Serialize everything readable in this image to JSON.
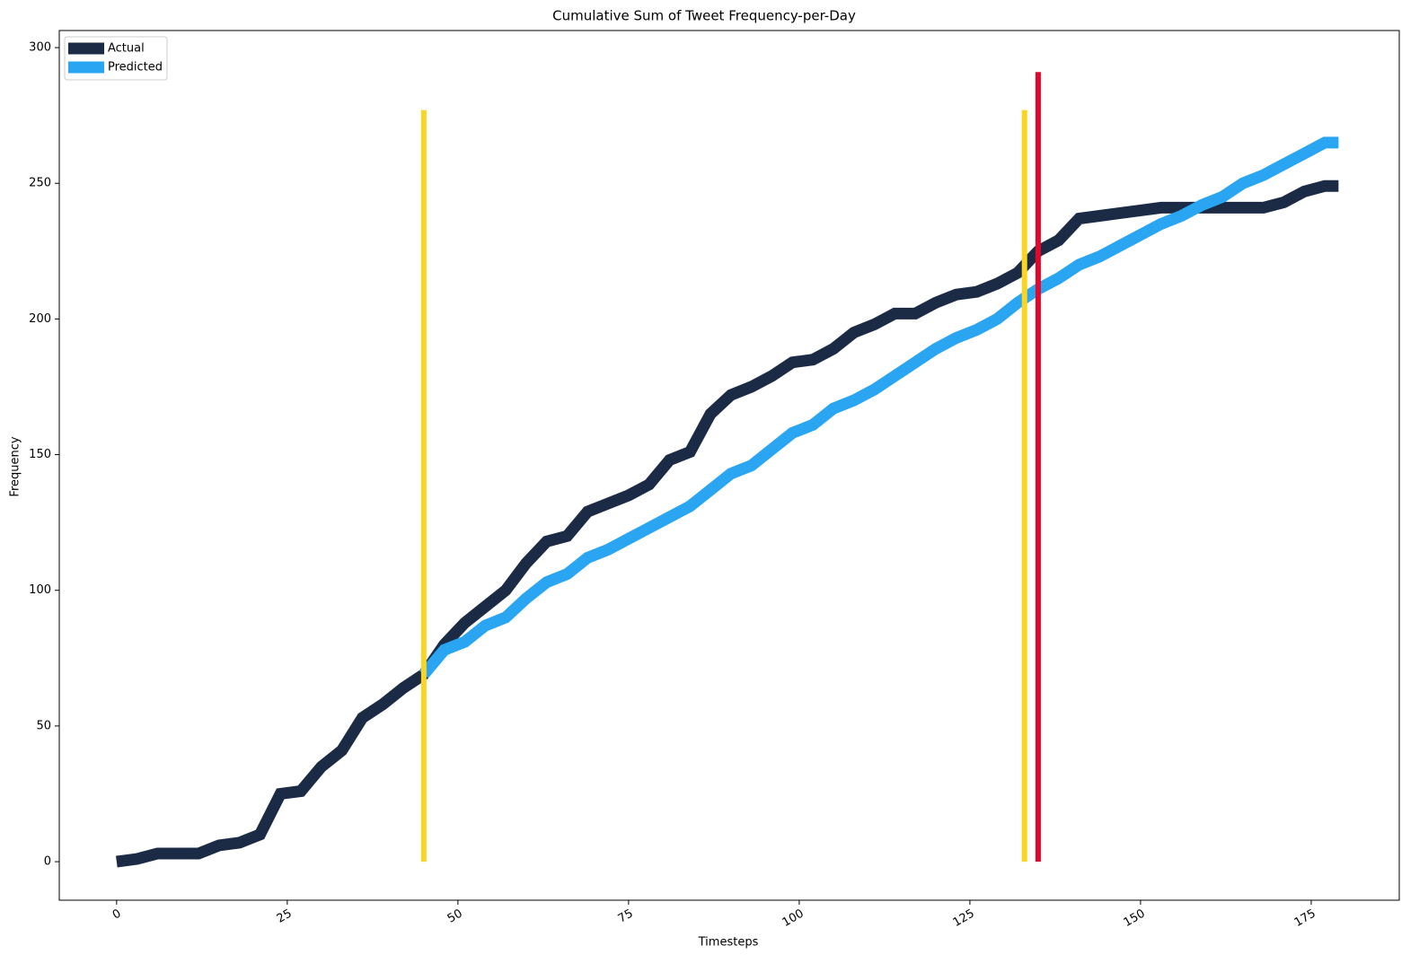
{
  "chart_data": {
    "type": "line",
    "title": "Cumulative Sum of Tweet Frequency-per-Day",
    "xlabel": "Timesteps",
    "ylabel": "Frequency",
    "x": [
      0,
      3,
      6,
      9,
      12,
      15,
      18,
      21,
      24,
      27,
      30,
      33,
      36,
      39,
      42,
      45,
      48,
      51,
      54,
      57,
      60,
      63,
      66,
      69,
      72,
      75,
      78,
      81,
      84,
      87,
      90,
      93,
      96,
      99,
      102,
      105,
      108,
      111,
      114,
      117,
      120,
      123,
      126,
      129,
      132,
      135,
      138,
      141,
      144,
      147,
      150,
      153,
      156,
      159,
      162,
      165,
      168,
      171,
      174,
      177,
      179
    ],
    "series": [
      {
        "name": "Actual",
        "color": "#1c2b45",
        "values": [
          0,
          1,
          3,
          3,
          3,
          6,
          7,
          10,
          25,
          26,
          35,
          41,
          53,
          58,
          64,
          69,
          80,
          88,
          94,
          100,
          110,
          118,
          120,
          129,
          132,
          135,
          139,
          148,
          151,
          165,
          172,
          175,
          179,
          184,
          185,
          189,
          195,
          198,
          202,
          202,
          206,
          209,
          210,
          213,
          217,
          225,
          229,
          237,
          238,
          239,
          240,
          241,
          241,
          241,
          241,
          241,
          241,
          243,
          247,
          249,
          249
        ]
      },
      {
        "name": "Predicted",
        "color": "#29a5f2",
        "values": [
          null,
          null,
          null,
          null,
          null,
          null,
          null,
          null,
          null,
          null,
          null,
          null,
          null,
          null,
          null,
          69,
          78,
          81,
          87,
          90,
          97,
          103,
          106,
          112,
          115,
          119,
          123,
          127,
          131,
          137,
          143,
          146,
          152,
          158,
          161,
          167,
          170,
          174,
          179,
          184,
          189,
          193,
          196,
          200,
          206,
          211,
          215,
          220,
          223,
          227,
          231,
          235,
          238,
          242,
          245,
          250,
          253,
          257,
          261,
          265,
          265
        ]
      }
    ],
    "vlines": [
      {
        "x": 45,
        "ymin": 0,
        "ymax": 277,
        "color": "#fbd524"
      },
      {
        "x": 133,
        "ymin": 0,
        "ymax": 277,
        "color": "#fbd524"
      },
      {
        "x": 135,
        "ymin": 0,
        "ymax": 291,
        "color": "#e5062b"
      }
    ],
    "xlim": [
      -8.4,
      187.9
    ],
    "ylim": [
      -14.2,
      306.3
    ],
    "xticks": [
      0,
      25,
      50,
      75,
      100,
      125,
      150,
      175
    ],
    "yticks": [
      0,
      50,
      100,
      150,
      200,
      250,
      300
    ],
    "legend": "upper left"
  }
}
